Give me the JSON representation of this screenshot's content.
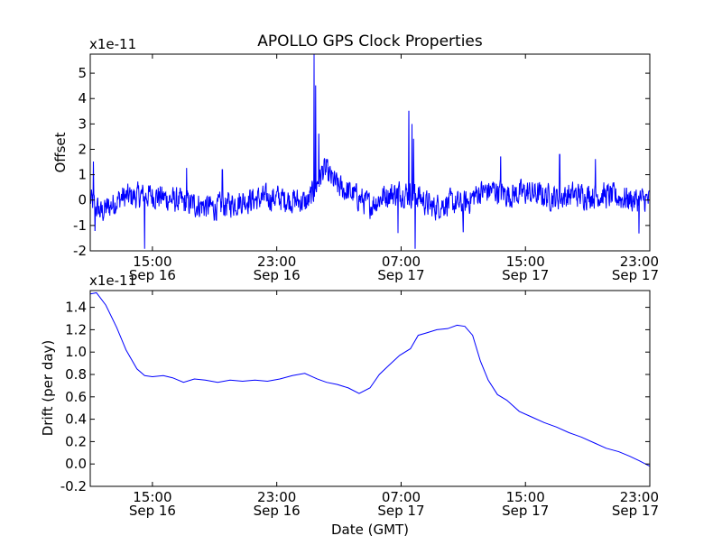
{
  "figure": {
    "title": "APOLLO GPS Clock Properties",
    "xlabel": "Date (GMT)"
  },
  "chart_data": [
    {
      "type": "line",
      "title": "APOLLO GPS Clock Properties",
      "ylabel": "Offset",
      "y_multiplier": "x1e-11",
      "ylim": [
        -2,
        5.75
      ],
      "xlim": [
        0,
        36
      ],
      "x_unit": "hours since 11:00 GMT Sep 16",
      "yticks": [
        -2,
        -1,
        0,
        1,
        2,
        3,
        4,
        5
      ],
      "ytick_labels": [
        "-2",
        "-1",
        "0",
        "1",
        "2",
        "3",
        "4",
        "5"
      ],
      "xticks": [
        {
          "value": 4,
          "label": [
            "15:00",
            "Sep 16"
          ]
        },
        {
          "value": 12,
          "label": [
            "23:00",
            "Sep 16"
          ]
        },
        {
          "value": 20,
          "label": [
            "07:00",
            "Sep 17"
          ]
        },
        {
          "value": 28,
          "label": [
            "15:00",
            "Sep 17"
          ]
        },
        {
          "value": 36,
          "label": [
            "23:00",
            "Sep 17"
          ]
        }
      ],
      "color": "#0000ff",
      "noise_amplitude": 0.45,
      "baseline": [
        [
          0,
          0
        ],
        [
          0.7,
          -0.5
        ],
        [
          2,
          0.1
        ],
        [
          4,
          0.2
        ],
        [
          6,
          -0.1
        ],
        [
          8,
          -0.3
        ],
        [
          10,
          0
        ],
        [
          12,
          0.1
        ],
        [
          14,
          -0.1
        ],
        [
          14.5,
          0.5
        ],
        [
          15,
          1.2
        ],
        [
          16,
          0.5
        ],
        [
          17,
          0.2
        ],
        [
          18,
          -0.2
        ],
        [
          19,
          0.2
        ],
        [
          20,
          0.3
        ],
        [
          21,
          0.2
        ],
        [
          22,
          -0.3
        ],
        [
          23,
          -0.1
        ],
        [
          24,
          -0.2
        ],
        [
          25,
          0.3
        ],
        [
          26,
          0.4
        ],
        [
          27,
          0.2
        ],
        [
          28,
          0.3
        ],
        [
          30,
          0.1
        ],
        [
          31,
          0.2
        ],
        [
          32,
          0.2
        ],
        [
          33,
          0.2
        ],
        [
          34,
          0.1
        ],
        [
          35,
          0
        ],
        [
          36,
          0
        ]
      ],
      "spikes": [
        [
          14.4,
          5.75
        ],
        [
          14.5,
          4.5
        ],
        [
          14.7,
          2.6
        ],
        [
          15.2,
          1.6
        ],
        [
          20.5,
          3.5
        ],
        [
          20.7,
          3.0
        ],
        [
          20.8,
          2.4
        ],
        [
          3.5,
          -1.9
        ],
        [
          20.9,
          -1.9
        ],
        [
          19.8,
          -1.3
        ],
        [
          0.2,
          1.5
        ],
        [
          0.3,
          -1.2
        ],
        [
          26.4,
          1.7
        ],
        [
          30.2,
          1.8
        ],
        [
          32.5,
          1.6
        ],
        [
          35.3,
          -1.3
        ],
        [
          24,
          -1.25
        ],
        [
          6.2,
          1.25
        ],
        [
          8.5,
          1.2
        ]
      ]
    },
    {
      "type": "line",
      "ylabel": "Drift (per day)",
      "y_multiplier": "x1e-11",
      "xlabel": "Date (GMT)",
      "ylim": [
        -0.2,
        1.55
      ],
      "xlim": [
        0,
        36
      ],
      "x_unit": "hours since 11:00 GMT Sep 16",
      "yticks": [
        -0.2,
        0.0,
        0.2,
        0.4,
        0.6,
        0.8,
        1.0,
        1.2,
        1.4
      ],
      "ytick_labels": [
        "-0.2",
        "0.0",
        "0.2",
        "0.4",
        "0.6",
        "0.8",
        "1.0",
        "1.2",
        "1.4"
      ],
      "xticks": [
        {
          "value": 4,
          "label": [
            "15:00",
            "Sep 16"
          ]
        },
        {
          "value": 12,
          "label": [
            "23:00",
            "Sep 16"
          ]
        },
        {
          "value": 20,
          "label": [
            "07:00",
            "Sep 17"
          ]
        },
        {
          "value": 28,
          "label": [
            "15:00",
            "Sep 17"
          ]
        },
        {
          "value": 36,
          "label": [
            "23:00",
            "Sep 17"
          ]
        }
      ],
      "color": "#0000ff",
      "x": [
        0,
        0.4,
        1,
        1.7,
        2.3,
        3,
        3.5,
        4,
        4.7,
        5.3,
        6,
        6.7,
        7.4,
        8.2,
        9,
        9.8,
        10.6,
        11.4,
        12.2,
        13,
        13.8,
        14.6,
        15.2,
        15.9,
        16.6,
        17.3,
        18,
        18.6,
        19.2,
        19.9,
        20.6,
        21.1,
        21.6,
        22.3,
        23,
        23.6,
        24.1,
        24.6,
        25.1,
        25.6,
        26.2,
        26.8,
        27.6,
        28.4,
        29.2,
        30,
        30.8,
        31.6,
        32.4,
        33.2,
        34,
        34.7,
        35.3,
        36
      ],
      "y": [
        1.52,
        1.53,
        1.42,
        1.22,
        1.02,
        0.85,
        0.79,
        0.78,
        0.79,
        0.77,
        0.73,
        0.76,
        0.75,
        0.73,
        0.75,
        0.74,
        0.75,
        0.74,
        0.76,
        0.79,
        0.81,
        0.76,
        0.73,
        0.71,
        0.68,
        0.63,
        0.68,
        0.8,
        0.88,
        0.97,
        1.03,
        1.15,
        1.17,
        1.2,
        1.21,
        1.24,
        1.23,
        1.15,
        0.92,
        0.75,
        0.62,
        0.57,
        0.47,
        0.42,
        0.37,
        0.33,
        0.28,
        0.24,
        0.19,
        0.14,
        0.11,
        0.07,
        0.03,
        -0.02
      ]
    }
  ]
}
